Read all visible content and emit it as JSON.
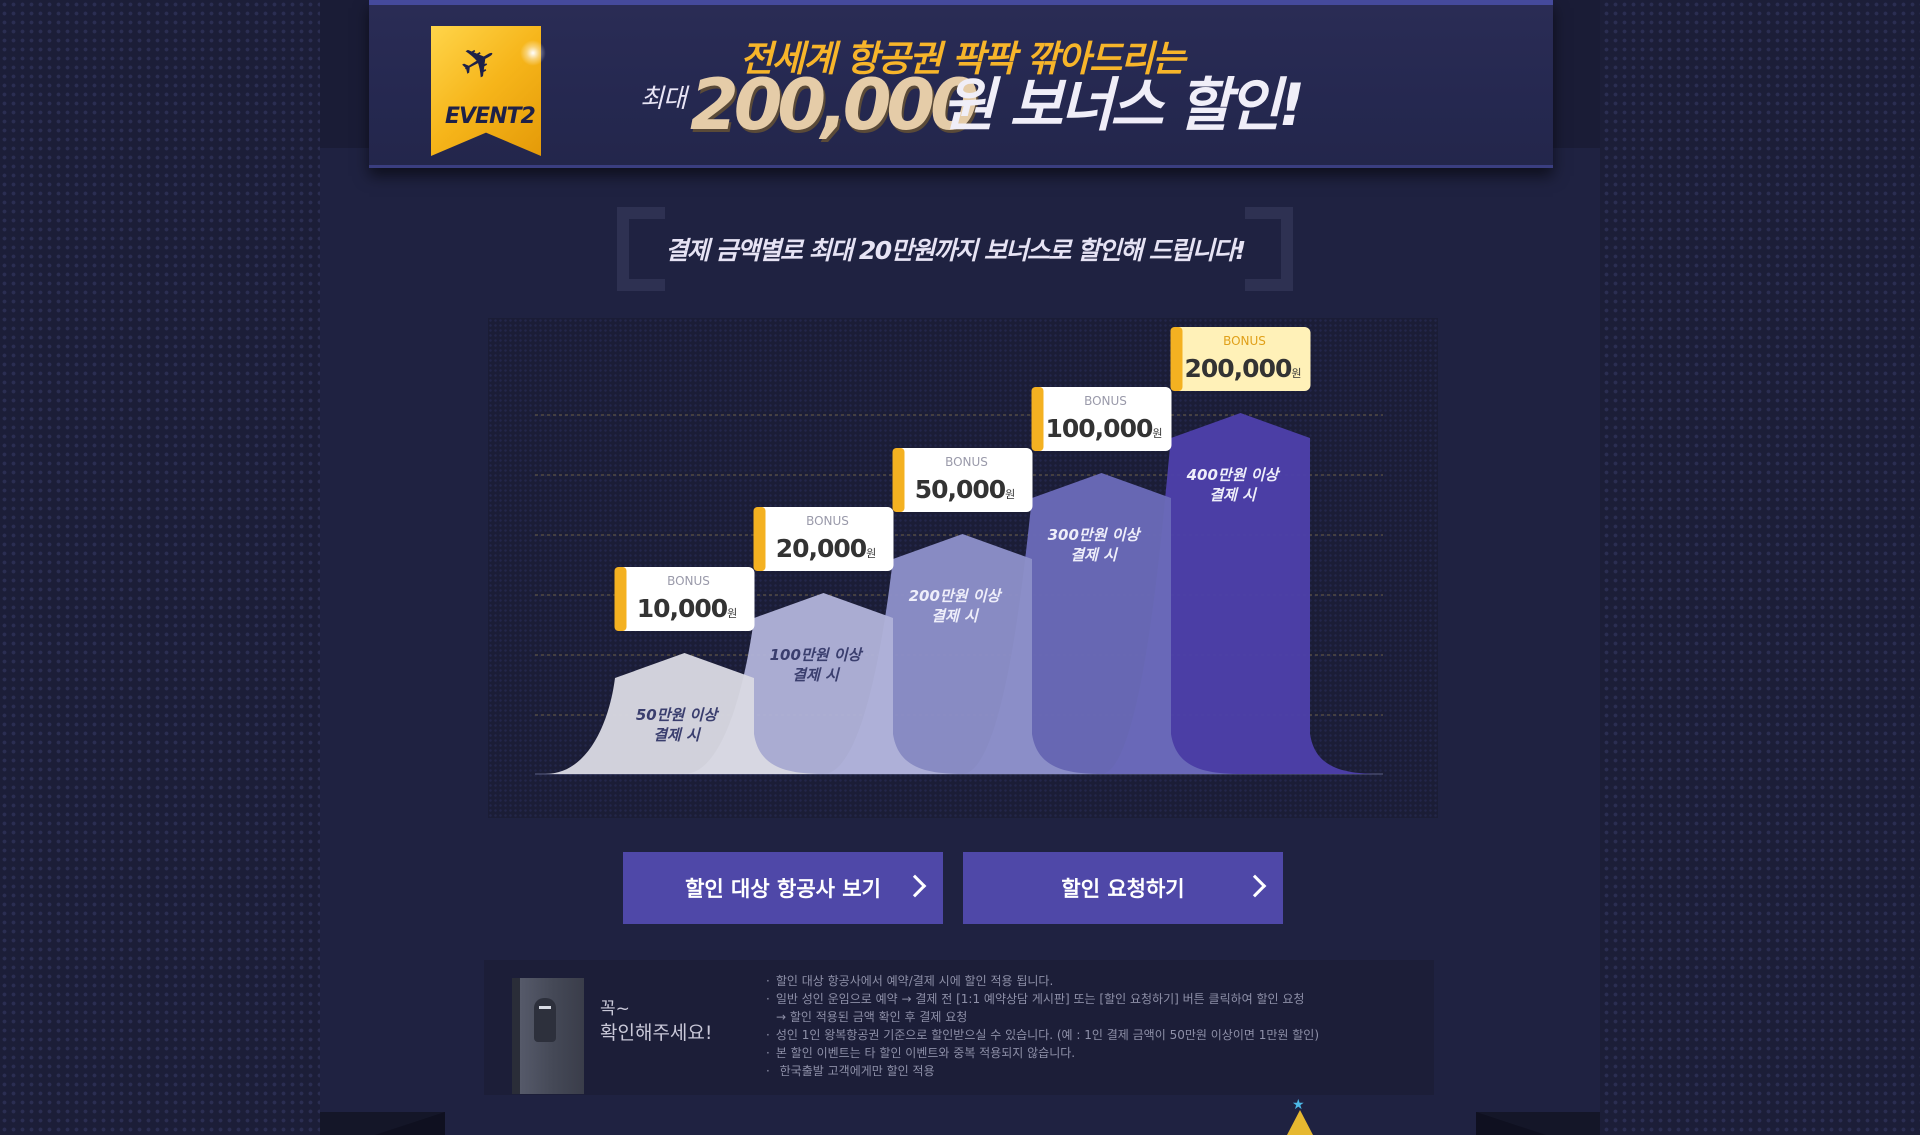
{
  "banner": {
    "event_label": "EVENT2",
    "headline_top": "전세계 항공권 팍팍 깎아드리는",
    "headline_prefix": "최대",
    "headline_amount": "200,000",
    "headline_suffix": "원 보너스 할인!",
    "icon": "airplane-icon"
  },
  "subtitle": "결제 금액별로 최대 20만원까지 보너스로 할인해 드립니다!",
  "tiers": [
    {
      "condition_amount": "50만원 이상",
      "condition_suffix": "결제 시",
      "bonus_label": "BONUS",
      "bonus_amount": "10,000",
      "bonus_unit": "원",
      "color": "#d9d9e2"
    },
    {
      "condition_amount": "100만원 이상",
      "condition_suffix": "결제 시",
      "bonus_label": "BONUS",
      "bonus_amount": "20,000",
      "bonus_unit": "원",
      "color": "#b0b2d8"
    },
    {
      "condition_amount": "200만원 이상",
      "condition_suffix": "결제 시",
      "bonus_label": "BONUS",
      "bonus_amount": "50,000",
      "bonus_unit": "원",
      "color": "#8d90c9"
    },
    {
      "condition_amount": "300만원 이상",
      "condition_suffix": "결제 시",
      "bonus_label": "BONUS",
      "bonus_amount": "100,000",
      "bonus_unit": "원",
      "color": "#6a6ab8"
    },
    {
      "condition_amount": "400만원 이상",
      "condition_suffix": "결제 시",
      "bonus_label": "BONUS",
      "bonus_amount": "200,000",
      "bonus_unit": "원",
      "color": "#4d40aa"
    }
  ],
  "buttons": {
    "airlines": "할인 대상 항공사 보기",
    "request": "할인 요청하기"
  },
  "notice": {
    "title_line1": "꼭~",
    "title_line2": "확인해주세요!",
    "items": [
      "할인 대상 항공사에서 예약/결제 시에 할인 적용 됩니다.",
      "일반 성인 운임으로 예약 → 결제 전 [1:1 예약상담 게시판] 또는 [할인 요청하기] 버튼 클릭하여 할인 요청",
      "→ 할인 적용된 금액 확인 후 결제 요청",
      "성인 1인 왕복항공권 기준으로 할인받으실 수 있습니다. (예 : 1인 결제 금액이 50만원 이상이면 1만원 할인)",
      "본 할인 이벤트는 타 할인 이벤트와 중복 적용되지 않습니다.",
      " 한국출발 고객에게만 할인 적용"
    ]
  },
  "colors": {
    "accent": "#f7b52a",
    "button": "#4f48a8",
    "background": "#1f2241"
  }
}
